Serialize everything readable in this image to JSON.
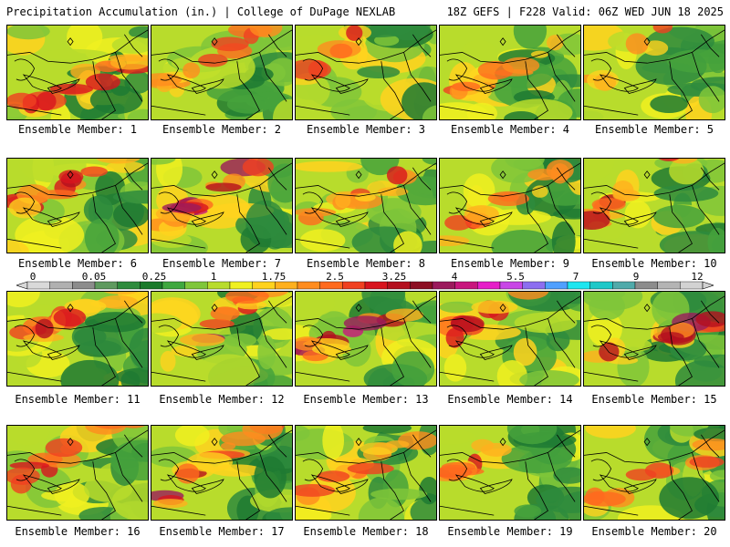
{
  "header": {
    "left_title": "Precipitation Accumulation (in.) | College of DuPage NEXLAB",
    "right_title": "18Z GEFS | F228 Valid: 06Z WED JUN 18 2025"
  },
  "panels": [
    {
      "label": "Ensemble Member: 1",
      "intensity": 0.55
    },
    {
      "label": "Ensemble Member: 2",
      "intensity": 0.4
    },
    {
      "label": "Ensemble Member: 3",
      "intensity": 0.7
    },
    {
      "label": "Ensemble Member: 4",
      "intensity": 0.35
    },
    {
      "label": "Ensemble Member: 5",
      "intensity": 0.2
    },
    {
      "label": "Ensemble Member: 6",
      "intensity": 0.55
    },
    {
      "label": "Ensemble Member: 7",
      "intensity": 0.8
    },
    {
      "label": "Ensemble Member: 8",
      "intensity": 0.45
    },
    {
      "label": "Ensemble Member: 9",
      "intensity": 0.35
    },
    {
      "label": "Ensemble Member: 10",
      "intensity": 0.6
    },
    {
      "label": "Ensemble Member: 11",
      "intensity": 0.65
    },
    {
      "label": "Ensemble Member: 12",
      "intensity": 0.7
    },
    {
      "label": "Ensemble Member: 13",
      "intensity": 0.85
    },
    {
      "label": "Ensemble Member: 14",
      "intensity": 0.45
    },
    {
      "label": "Ensemble Member: 15",
      "intensity": 0.6
    },
    {
      "label": "Ensemble Member: 16",
      "intensity": 0.55
    },
    {
      "label": "Ensemble Member: 17",
      "intensity": 0.6
    },
    {
      "label": "Ensemble Member: 18",
      "intensity": 0.4
    },
    {
      "label": "Ensemble Member: 19",
      "intensity": 0.45
    },
    {
      "label": "Ensemble Member: 20",
      "intensity": 0.35
    }
  ],
  "colorbar": {
    "tick_labels": [
      "0",
      "0.05",
      "0.25",
      "1",
      "1.75",
      "2.5",
      "3.25",
      "4",
      "5.5",
      "7",
      "9",
      "12"
    ],
    "colors": [
      "#d9d9d9",
      "#b0b0b0",
      "#8c8c8c",
      "#5f9a5f",
      "#2e8b3d",
      "#1a7a2a",
      "#3fa83f",
      "#7fc63a",
      "#b8dc2c",
      "#f0f020",
      "#ffd21e",
      "#ffb01e",
      "#ff8c1e",
      "#ff6a1e",
      "#f04020",
      "#d8141e",
      "#b40f1e",
      "#8c0f23",
      "#9b1a5c",
      "#c8167d",
      "#e61ec8",
      "#c846e6",
      "#8c6ef0",
      "#50a0ff",
      "#1ee6f0",
      "#1ec8c8",
      "#50aaaa",
      "#8c8c8c",
      "#b4b4b4",
      "#d2d2d2"
    ]
  },
  "precip_scale_colors": [
    "#1e7a32",
    "#2e8b3d",
    "#45a23c",
    "#7fc63a",
    "#b8dc2c",
    "#f0f020",
    "#ffd21e",
    "#ffb01e",
    "#ff8c1e",
    "#ff6a1e",
    "#f04020",
    "#d8141e",
    "#b40f1e",
    "#9b1a5c",
    "#c8167d",
    "#e61ec8"
  ]
}
